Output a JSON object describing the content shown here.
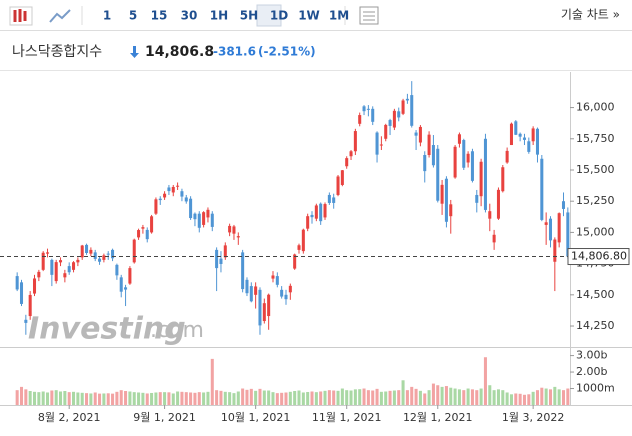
{
  "toolbar": {
    "intervals": [
      "1",
      "5",
      "15",
      "30",
      "1H",
      "5H",
      "1D",
      "1W",
      "1M"
    ],
    "technical": "기술 차트 »"
  },
  "chart_data": {
    "type": "candlestick",
    "title": "나스닥종합지수",
    "price": "14,806.8",
    "change": "-381.6",
    "change_pct": "(-2.51%)",
    "watermark": [
      "Investing",
      ".com"
    ],
    "categories": [
      null,
      null,
      null,
      null,
      null,
      null,
      null,
      null,
      null,
      null,
      null,
      null,
      "8월 2, 2021",
      null,
      null,
      null,
      null,
      null,
      null,
      null,
      null,
      null,
      null,
      null,
      null,
      null,
      null,
      null,
      null,
      null,
      null,
      null,
      null,
      null,
      "9월 1, 2021",
      null,
      null,
      null,
      null,
      null,
      null,
      null,
      null,
      null,
      null,
      null,
      null,
      null,
      null,
      null,
      null,
      null,
      null,
      null,
      null,
      "10월 1, 2021",
      null,
      null,
      null,
      null,
      null,
      null,
      null,
      null,
      null,
      null,
      null,
      null,
      null,
      null,
      null,
      null,
      null,
      null,
      null,
      null,
      "11월 1, 2021",
      null,
      null,
      null,
      null,
      null,
      null,
      null,
      null,
      null,
      null,
      null,
      null,
      null,
      null,
      null,
      null,
      null,
      null,
      null,
      null,
      "12월 1, 2021",
      null,
      null,
      null,
      null,
      null,
      null,
      null,
      null,
      null,
      null,
      null,
      null,
      null,
      null,
      null,
      null,
      null,
      null,
      null,
      null,
      null,
      "1월 3, 2022",
      null,
      null,
      null,
      null,
      null,
      null,
      null,
      null
    ],
    "open": [
      14650,
      14600,
      14300,
      14330,
      14510,
      14640,
      14700,
      14830,
      14780,
      14610,
      14760,
      14640,
      14730,
      14700,
      14760,
      14800,
      14900,
      14830,
      14840,
      14790,
      14780,
      14830,
      14860,
      14740,
      14640,
      14560,
      14590,
      14760,
      14960,
      15030,
      15020,
      15000,
      15150,
      15270,
      15280,
      15360,
      15320,
      15370,
      15330,
      15280,
      15270,
      15150,
      15150,
      15060,
      15120,
      15150,
      14860,
      14790,
      14800,
      15000,
      14990,
      14960,
      14840,
      14620,
      14570,
      14500,
      14540,
      14290,
      14330,
      14630,
      14650,
      14540,
      14500,
      14520,
      14710,
      14860,
      14850,
      15030,
      15140,
      15110,
      15230,
      15120,
      15300,
      15280,
      15300,
      15380,
      15530,
      15610,
      15650,
      15870,
      16010,
      15990,
      15990,
      15800,
      15700,
      15750,
      15900,
      15840,
      15970,
      15950,
      16070,
      16100,
      15800,
      15720,
      15620,
      15620,
      15700,
      15670,
      15230,
      15430,
      15130,
      15440,
      15710,
      15740,
      15560,
      15650,
      15300,
      15290,
      15750,
      15110,
      14920,
      15110,
      15330,
      15560,
      15700,
      15890,
      15790,
      15760,
      15730,
      15730,
      15830,
      15590,
      15060,
      15110,
      14765,
      14920,
      15250,
      15160
    ],
    "high": [
      14680,
      14620,
      14340,
      14530,
      14660,
      14700,
      14850,
      14870,
      14790,
      14780,
      14800,
      14700,
      14760,
      14770,
      14800,
      14900,
      14910,
      14880,
      14860,
      14810,
      14830,
      14850,
      14870,
      14750,
      14660,
      14580,
      14730,
      14950,
      15030,
      15060,
      15040,
      15140,
      15280,
      15290,
      15330,
      15380,
      15380,
      15400,
      15350,
      15300,
      15290,
      15160,
      15170,
      15170,
      15200,
      15170,
      14880,
      14850,
      14920,
      15070,
      15060,
      15000,
      14860,
      14640,
      14600,
      14600,
      14560,
      14470,
      14510,
      14690,
      14680,
      14570,
      14540,
      14590,
      14830,
      14910,
      15030,
      15150,
      15170,
      15230,
      15240,
      15240,
      15320,
      15310,
      15460,
      15500,
      15610,
      15660,
      15830,
      15960,
      16020,
      16020,
      16010,
      15810,
      15770,
      15870,
      15910,
      15990,
      16000,
      16070,
      16110,
      16212,
      15820,
      15860,
      15650,
      15810,
      15780,
      15700,
      15420,
      15450,
      15260,
      15700,
      15800,
      15750,
      15650,
      15670,
      15340,
      15590,
      15790,
      15230,
      15020,
      15360,
      15540,
      15680,
      15880,
      15900,
      15800,
      15790,
      15760,
      15850,
      15840,
      15620,
      15160,
      15130,
      14960,
      15160,
      15320,
      15200
    ],
    "low": [
      14530,
      14410,
      14180,
      14300,
      14490,
      14610,
      14690,
      14800,
      14570,
      14590,
      14730,
      14600,
      14660,
      14680,
      14730,
      14780,
      14820,
      14810,
      14770,
      14740,
      14760,
      14780,
      14770,
      14620,
      14480,
      14410,
      14580,
      14750,
      14940,
      14990,
      14920,
      14990,
      15140,
      15220,
      15260,
      15300,
      15290,
      15340,
      15250,
      15230,
      15100,
      15050,
      15000,
      15040,
      15080,
      15010,
      14530,
      14680,
      14780,
      14970,
      14940,
      14900,
      14520,
      14490,
      14440,
      14390,
      14180,
      14270,
      14220,
      14600,
      14560,
      14470,
      14420,
      14460,
      14700,
      14830,
      14830,
      15010,
      15070,
      15090,
      15060,
      15100,
      15220,
      15190,
      15290,
      15370,
      15510,
      15580,
      15620,
      15850,
      15940,
      15930,
      15860,
      15560,
      15660,
      15730,
      15780,
      15820,
      15890,
      15940,
      16030,
      15840,
      15660,
      15690,
      15400,
      15600,
      15520,
      15240,
      15140,
      15040,
      14990,
      15430,
      15680,
      15500,
      15520,
      15400,
      15160,
      15210,
      15160,
      15010,
      14860,
      15100,
      15320,
      15550,
      15700,
      15780,
      15730,
      15700,
      15630,
      15700,
      15560,
      15090,
      14900,
      14880,
      14530,
      14880,
      15130,
      14790
    ],
    "close": [
      14543,
      14427,
      14275,
      14499,
      14631,
      14684,
      14837,
      14840,
      14660,
      14762,
      14778,
      14673,
      14681,
      14761,
      14780,
      14895,
      14835,
      14860,
      14788,
      14765,
      14816,
      14823,
      14793,
      14656,
      14525,
      14542,
      14714,
      14942,
      15019,
      15042,
      14946,
      15129,
      15265,
      15259,
      15310,
      15331,
      15364,
      15374,
      15287,
      15248,
      15115,
      15106,
      15037,
      15162,
      15181,
      15044,
      14714,
      14747,
      14896,
      15052,
      15048,
      14970,
      14546,
      14513,
      14448,
      14567,
      14255,
      14433,
      14501,
      14655,
      14580,
      14486,
      14465,
      14572,
      14823,
      14897,
      15022,
      15130,
      15122,
      15216,
      15090,
      15227,
      15236,
      15236,
      15448,
      15498,
      15595,
      15650,
      15812,
      15940,
      15971,
      15982,
      15886,
      15623,
      15704,
      15861,
      15853,
      15974,
      15921,
      16057,
      16057,
      15854,
      15775,
      15845,
      15491,
      15783,
      15538,
      15254,
      15381,
      15085,
      15225,
      15686,
      15786,
      15518,
      15630,
      15413,
      15237,
      15566,
      15180,
      15170,
      14981,
      15341,
      15522,
      15653,
      15871,
      15782,
      15767,
      15741,
      15645,
      15833,
      15623,
      15100,
      15081,
      14936,
      14943,
      15154,
      15188,
      14806.8
    ],
    "volume": [
      900,
      1100,
      950,
      850,
      800,
      780,
      820,
      760,
      880,
      900,
      820,
      850,
      780,
      800,
      760,
      740,
      720,
      700,
      760,
      690,
      700,
      710,
      690,
      800,
      900,
      850,
      820,
      780,
      760,
      740,
      700,
      730,
      760,
      780,
      780,
      770,
      700,
      820,
      800,
      780,
      760,
      740,
      780,
      760,
      800,
      2800,
      900,
      860,
      800,
      780,
      720,
      820,
      1000,
      920,
      980,
      860,
      980,
      880,
      880,
      780,
      720,
      740,
      760,
      800,
      850,
      880,
      760,
      790,
      820,
      780,
      820,
      860,
      900,
      880,
      860,
      1000,
      900,
      880,
      950,
      960,
      1000,
      900,
      880,
      980,
      800,
      820,
      860,
      880,
      900,
      1500,
      900,
      1100,
      980,
      860,
      700,
      900,
      1300,
      1200,
      1100,
      1150,
      1050,
      1000,
      950,
      900,
      1000,
      950,
      900,
      1000,
      2900,
      1200,
      900,
      950,
      900,
      760,
      650,
      700,
      680,
      620,
      650,
      800,
      900,
      1050,
      1000,
      950,
      1100,
      950,
      900,
      1000
    ],
    "up_color": "#e8423f",
    "down_color": "#4f95d4",
    "volume_up_color": "#a9d8a4",
    "volume_down_color": "#f2a3a3",
    "ylim": [
      14090,
      16285
    ],
    "yticks": [
      {
        "value": 14250,
        "label": "14,250"
      },
      {
        "value": 14500,
        "label": "14,500"
      },
      {
        "value": 14750,
        "label": "14,750"
      },
      {
        "value": 15000,
        "label": "15,000"
      },
      {
        "value": 15250,
        "label": "15,250"
      },
      {
        "value": 15500,
        "label": "15,500"
      },
      {
        "value": 15750,
        "label": "15,750"
      },
      {
        "value": 16000,
        "label": "16,000"
      }
    ],
    "last_price": {
      "value": 14806.8,
      "label": "14,806.80"
    },
    "volume_ylim": [
      0,
      3460
    ],
    "volume_yticks": [
      {
        "value": 1000,
        "label": "1000m"
      },
      {
        "value": 2000,
        "label": "2.00b"
      },
      {
        "value": 3000,
        "label": "3.00b"
      }
    ]
  }
}
